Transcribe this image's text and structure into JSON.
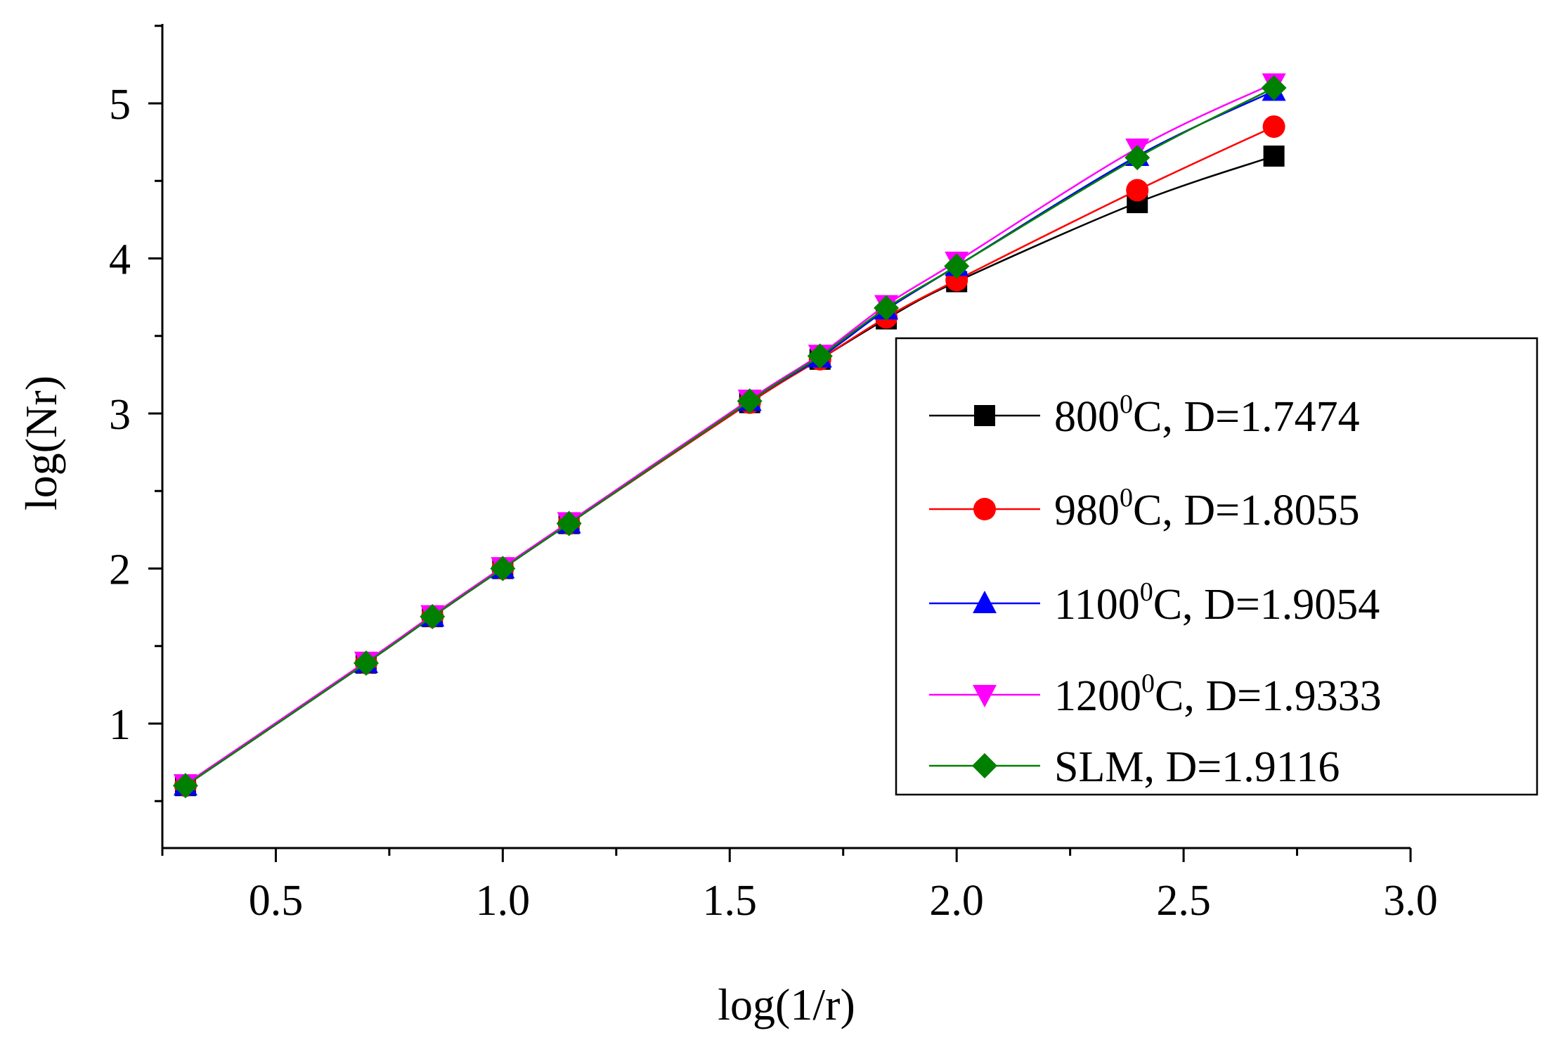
{
  "chart_data": {
    "type": "line",
    "title": "",
    "xlabel": "log(1/r)",
    "ylabel": "log(Nr)",
    "xlim": [
      0.25,
      3.0
    ],
    "ylim": [
      0.35,
      5.5
    ],
    "xticks": [
      0.5,
      1.0,
      1.5,
      2.0,
      2.5,
      3.0
    ],
    "xtick_labels": [
      "0.5",
      "1.0",
      "1.5",
      "2.0",
      "2.5",
      "3.0"
    ],
    "yticks": [
      1,
      2,
      3,
      4,
      5
    ],
    "ytick_labels": [
      "1",
      "2",
      "3",
      "4",
      "5"
    ],
    "grid": false,
    "legend_position": "center-right",
    "x": [
      0.301,
      0.699,
      0.845,
      1.0,
      1.146,
      1.544,
      1.699,
      1.845,
      2.0,
      2.398,
      2.699
    ],
    "series": [
      {
        "name": "800⁰C, D=1.7474",
        "label_main": "800",
        "label_sup": "0",
        "label_rest": "C, D=1.7474",
        "color": "#000000",
        "marker": "square",
        "values": [
          0.6,
          1.39,
          1.69,
          2.0,
          2.29,
          3.07,
          3.35,
          3.61,
          3.85,
          4.36,
          4.66
        ]
      },
      {
        "name": "980⁰C, D=1.8055",
        "label_main": "980",
        "label_sup": "0",
        "label_rest": "C, D=1.8055",
        "color": "#ff0000",
        "marker": "circle",
        "values": [
          0.6,
          1.39,
          1.69,
          2.0,
          2.29,
          3.07,
          3.35,
          3.62,
          3.86,
          4.44,
          4.85
        ]
      },
      {
        "name": "1100⁰C, D=1.9054",
        "label_main": "1100",
        "label_sup": "0",
        "label_rest": "C, D=1.9054",
        "color": "#0000ff",
        "marker": "triangle-up",
        "values": [
          0.6,
          1.39,
          1.69,
          2.0,
          2.29,
          3.08,
          3.36,
          3.67,
          3.95,
          4.66,
          5.08
        ]
      },
      {
        "name": "1200⁰C, D=1.9333",
        "label_main": "1200",
        "label_sup": "0",
        "label_rest": "C, D=1.9333",
        "color": "#ff00ff",
        "marker": "triangle-down",
        "values": [
          0.61,
          1.4,
          1.7,
          2.01,
          2.3,
          3.09,
          3.38,
          3.7,
          3.98,
          4.71,
          5.13
        ]
      },
      {
        "name": "SLM, D=1.9116",
        "label_main": "SLM, D=1.9116",
        "label_sup": "",
        "label_rest": "",
        "color": "#008000",
        "marker": "diamond",
        "values": [
          0.6,
          1.39,
          1.69,
          2.0,
          2.29,
          3.08,
          3.37,
          3.68,
          3.95,
          4.65,
          5.1
        ]
      }
    ]
  }
}
